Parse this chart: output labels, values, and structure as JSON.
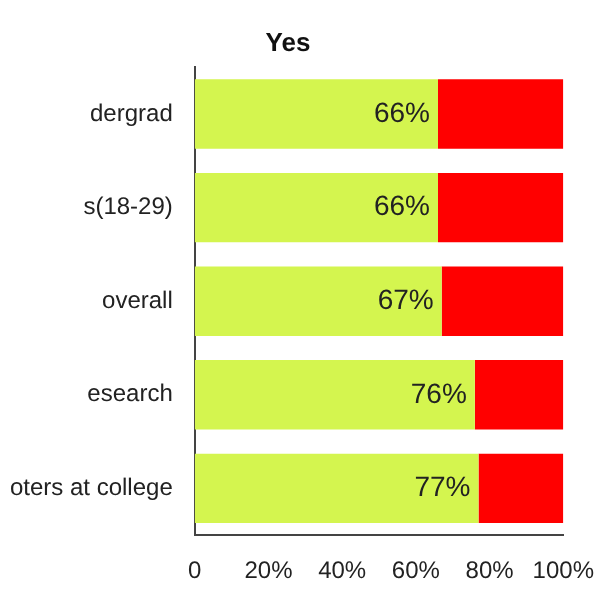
{
  "chart_data": {
    "type": "bar",
    "orientation": "horizontal",
    "stacked": true,
    "title": "Yes",
    "categories": [
      "dergrad",
      "s(18-29)",
      "overall",
      "esearch",
      "oters at college"
    ],
    "series": [
      {
        "color": "#d4f54f",
        "values": [
          66,
          66,
          67,
          76,
          77
        ],
        "value_labels": [
          "66%",
          "66%",
          "67%",
          "76%",
          "77%"
        ]
      },
      {
        "color": "#ff0000",
        "values": [
          34,
          34,
          33,
          24,
          23
        ]
      }
    ],
    "xlim": [
      0,
      100
    ],
    "xticks": [
      {
        "value": 0,
        "label": "0"
      },
      {
        "value": 20,
        "label": "20%"
      },
      {
        "value": 40,
        "label": "40%"
      },
      {
        "value": 60,
        "label": "60%"
      },
      {
        "value": 80,
        "label": "80%"
      },
      {
        "value": 100,
        "label": "100%"
      }
    ],
    "grid": false,
    "legend": false
  }
}
